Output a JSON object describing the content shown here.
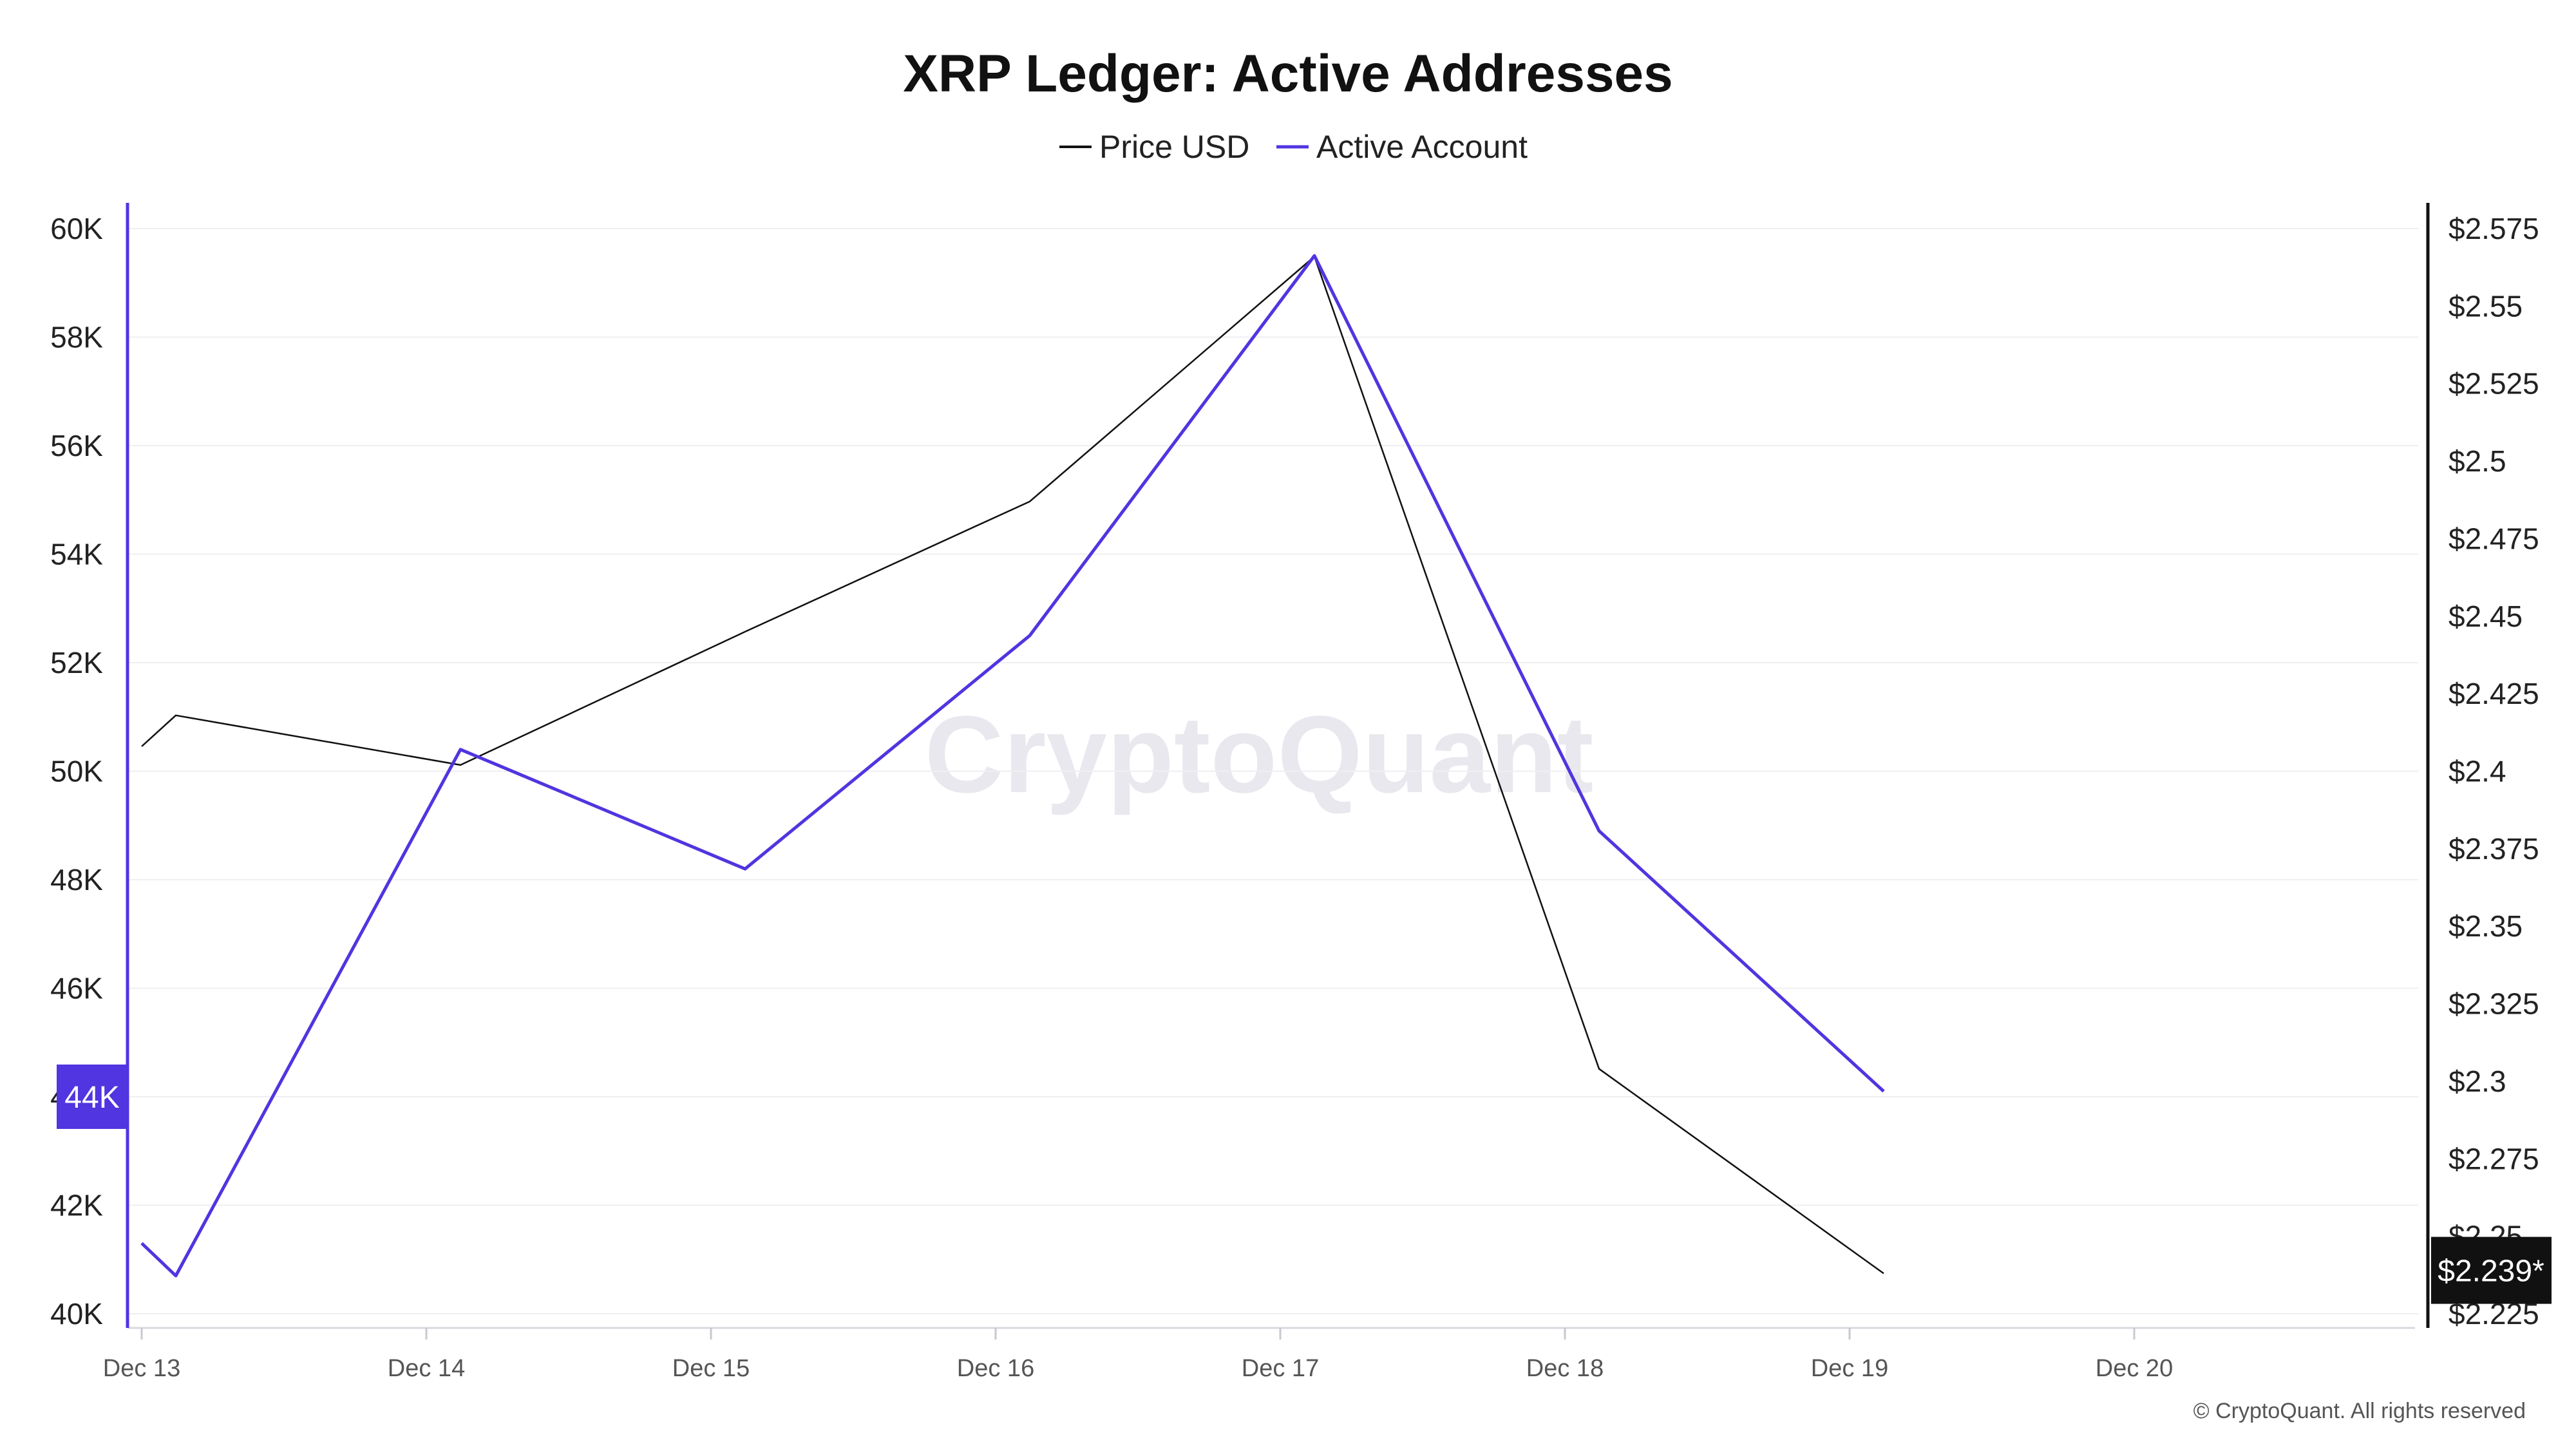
{
  "page": {
    "watermark": "CryptoQuant",
    "credit": "© CryptoQuant. All rights reserved"
  },
  "chart_data": {
    "type": "line",
    "title": "XRP Ledger: Active Addresses",
    "x_ticks": [
      "Dec 13",
      "Dec 14",
      "Dec 15",
      "Dec 16",
      "Dec 17",
      "Dec 18",
      "Dec 19",
      "Dec 20"
    ],
    "x_range": [
      13,
      21
    ],
    "left_axis": {
      "ticks": [
        "40K",
        "42K",
        "44K",
        "46K",
        "48K",
        "50K",
        "52K",
        "54K",
        "56K",
        "58K",
        "60K"
      ],
      "tick_values": [
        40000,
        42000,
        44000,
        46000,
        48000,
        50000,
        52000,
        54000,
        56000,
        58000,
        60000
      ],
      "range": [
        40000,
        60000
      ],
      "color": "#5035e0"
    },
    "right_axis": {
      "ticks": [
        "$2.225",
        "$2.25",
        "$2.275",
        "$2.3",
        "$2.325",
        "$2.35",
        "$2.375",
        "$2.4",
        "$2.425",
        "$2.45",
        "$2.475",
        "$2.5",
        "$2.525",
        "$2.55",
        "$2.575"
      ],
      "tick_values": [
        2.225,
        2.25,
        2.275,
        2.3,
        2.325,
        2.35,
        2.375,
        2.4,
        2.425,
        2.45,
        2.475,
        2.5,
        2.525,
        2.55,
        2.575
      ],
      "range": [
        2.225,
        2.575
      ],
      "color": "#111111"
    },
    "series": [
      {
        "name": "Price USD",
        "axis": "right",
        "color": "#111111",
        "x": [
          13.0,
          13.12,
          14.12,
          15.12,
          16.12,
          17.12,
          18.12,
          19.12
        ],
        "values": [
          2.408,
          2.418,
          2.402,
          2.445,
          2.487,
          2.566,
          2.304,
          2.238
        ]
      },
      {
        "name": "Active Account",
        "axis": "left",
        "color": "#5035e0",
        "x": [
          13.0,
          13.12,
          14.12,
          15.12,
          16.12,
          17.12,
          18.12,
          19.12
        ],
        "values": [
          41300,
          40700,
          50400,
          48200,
          52500,
          59500,
          48900,
          44100
        ]
      }
    ],
    "current_left_label": "44K",
    "current_right_label": "$2.239*",
    "grid": true,
    "legend": "top-center"
  }
}
